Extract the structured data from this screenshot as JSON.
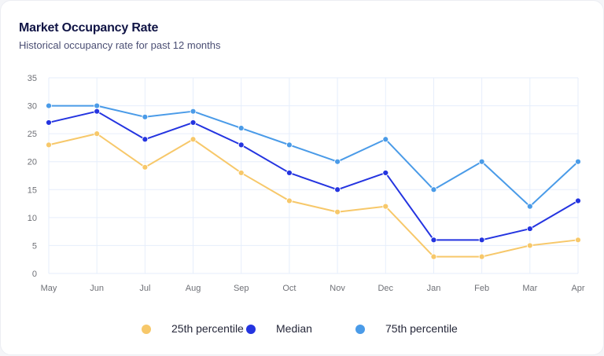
{
  "header": {
    "title": "Market Occupancy Rate",
    "subtitle": "Historical occupancy rate for past 12 months"
  },
  "chart_data": {
    "type": "line",
    "title": "Market Occupancy Rate",
    "subtitle": "Historical occupancy rate for past 12 months",
    "xlabel": "",
    "ylabel": "",
    "categories": [
      "May",
      "Jun",
      "Jul",
      "Aug",
      "Sep",
      "Oct",
      "Nov",
      "Dec",
      "Jan",
      "Feb",
      "Mar",
      "Apr"
    ],
    "yticks": [
      "0",
      "5",
      "10",
      "15",
      "20",
      "25",
      "30",
      "35"
    ],
    "ylim": [
      0,
      35
    ],
    "grid": true,
    "legend_position": "bottom",
    "series": [
      {
        "name": "25th percentile",
        "color": "#f7c86a",
        "values": [
          23,
          25,
          19,
          24,
          18,
          13,
          11,
          12,
          3,
          3,
          5,
          6
        ]
      },
      {
        "name": "Median",
        "color": "#2434e0",
        "values": [
          27,
          29,
          24,
          27,
          23,
          18,
          15,
          18,
          6,
          6,
          8,
          13
        ]
      },
      {
        "name": "75th percentile",
        "color": "#4a9be8",
        "values": [
          30,
          30,
          28,
          29,
          26,
          23,
          20,
          24,
          15,
          20,
          12,
          20
        ]
      }
    ]
  }
}
